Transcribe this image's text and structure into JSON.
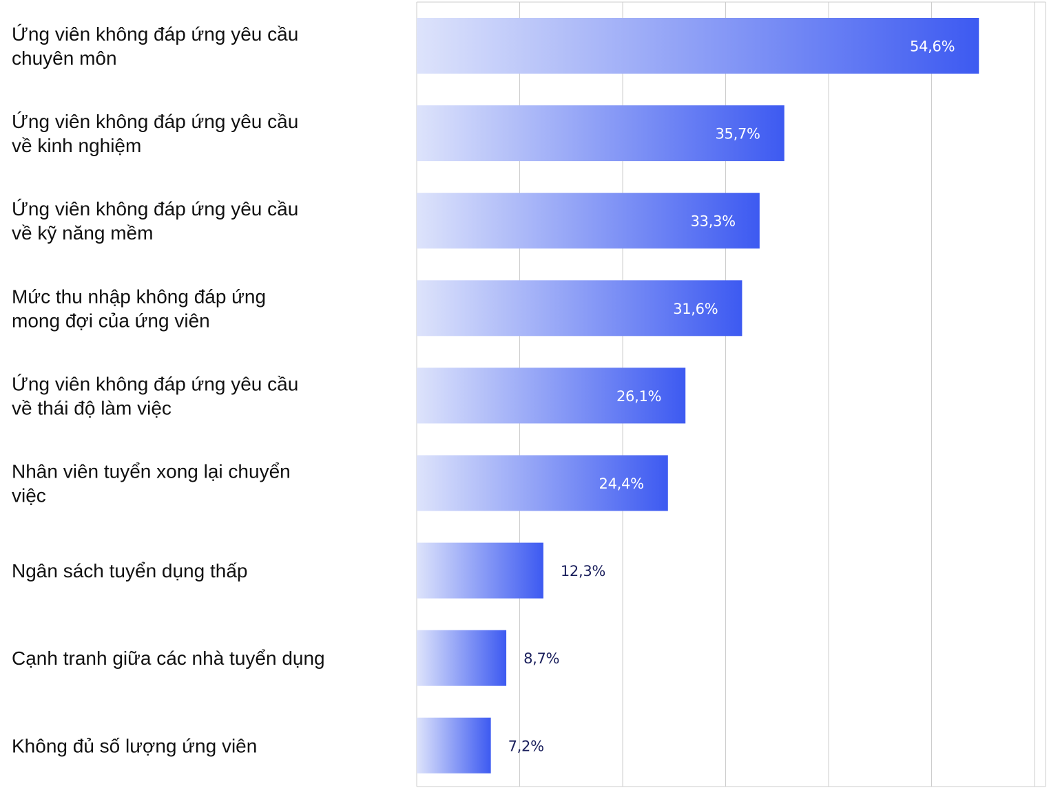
{
  "chart_data": {
    "type": "bar",
    "orientation": "horizontal",
    "title": "",
    "xlabel": "",
    "ylabel": "",
    "xlim": [
      0,
      60
    ],
    "grid": true,
    "categories": [
      [
        "Ứng viên không đáp ứng yêu cầu",
        "chuyên môn"
      ],
      [
        "Ứng viên không đáp ứng yêu cầu",
        "về kinh nghiệm"
      ],
      [
        "Ứng viên không đáp ứng yêu cầu",
        "về kỹ năng mềm"
      ],
      [
        "Mức thu nhập không đáp ứng",
        "mong đợi của ứng viên"
      ],
      [
        "Ứng viên không đáp ứng yêu cầu",
        "về thái độ làm việc"
      ],
      [
        "Nhân viên tuyển xong lại chuyển",
        "việc"
      ],
      [
        "Ngân sách tuyển dụng thấp"
      ],
      [
        "Cạnh tranh giữa các nhà tuyển dụng"
      ],
      [
        "Không đủ số lượng ứng viên"
      ]
    ],
    "values": [
      54.6,
      35.7,
      33.3,
      31.6,
      26.1,
      24.4,
      12.3,
      8.7,
      7.2
    ],
    "value_labels": [
      "54,6%",
      "35,7%",
      "33,3%",
      "31,6%",
      "26,1%",
      "24,4%",
      "12,3%",
      "8,7%",
      "7,2%"
    ],
    "colors": {
      "bar_start": "#DDE3FB",
      "bar_end": "#3D5AF1",
      "label_inside": "#FFFFFF",
      "label_outside": "#1A1F5C",
      "grid": "#CCCCCC"
    }
  }
}
